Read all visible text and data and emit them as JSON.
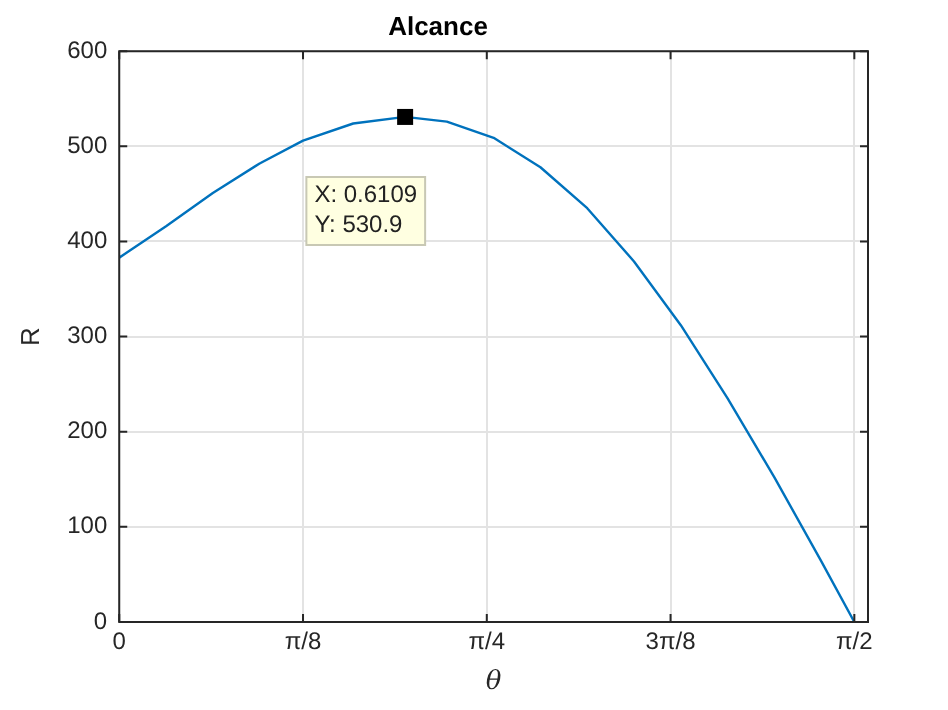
{
  "chart_data": {
    "type": "line",
    "title": "Alcance",
    "xlabel": "θ",
    "ylabel": "R",
    "x": [
      0,
      0.1,
      0.2,
      0.3,
      0.3927,
      0.5,
      0.6109,
      0.7,
      0.8,
      0.9,
      1.0,
      1.1,
      1.2,
      1.3,
      1.4,
      1.5,
      1.5708
    ],
    "series": [
      {
        "color": "#0072bd",
        "values": [
          383,
          416,
          451,
          482,
          506,
          524,
          531,
          526,
          509,
          478,
          435,
          379,
          312,
          235,
          152,
          64,
          0
        ]
      }
    ],
    "xlim": [
      0,
      1.6
    ],
    "xticks": [
      0,
      {
        "value": 0.3927,
        "label": "π/8"
      },
      {
        "value": 0.7854,
        "label": "π/4"
      },
      {
        "value": 1.1781,
        "label": "3π/8"
      },
      {
        "value": 1.5708,
        "label": "π/2"
      }
    ],
    "ylim": [
      0,
      600
    ],
    "yticks": [
      0,
      100,
      200,
      300,
      400,
      500,
      600
    ],
    "grid": true,
    "legend": false,
    "marker": "none",
    "line_style": "solid",
    "annotations": [
      {
        "text": "X: 0.6109\nY: 530.9",
        "x": 0.6109,
        "y": 530.9
      }
    ]
  }
}
